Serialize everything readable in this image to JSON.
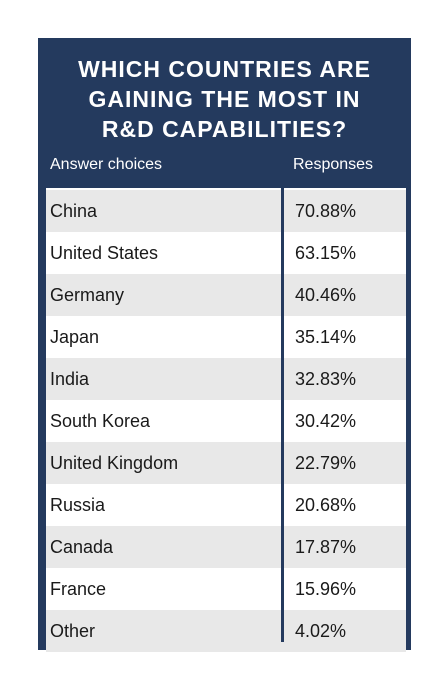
{
  "colors": {
    "header_bg": "#243a5e",
    "header_text": "#ffffff",
    "row_alt": "#e8e8e8",
    "row_plain": "#ffffff",
    "text": "#1a1a1a"
  },
  "chart_data": {
    "type": "table",
    "title": "WHICH COUNTRIES ARE GAINING THE MOST IN R&D CAPABILITIES?",
    "title_lines": [
      "WHICH COUNTRIES ARE",
      "GAINING THE MOST IN",
      "R&D CAPABILITIES?"
    ],
    "columns": [
      "Answer choices",
      "Responses"
    ],
    "rows": [
      {
        "country": "China",
        "response": "70.88%"
      },
      {
        "country": "United States",
        "response": "63.15%"
      },
      {
        "country": "Germany",
        "response": "40.46%"
      },
      {
        "country": "Japan",
        "response": "35.14%"
      },
      {
        "country": "India",
        "response": "32.83%"
      },
      {
        "country": "South Korea",
        "response": "30.42%"
      },
      {
        "country": "United Kingdom",
        "response": "22.79%"
      },
      {
        "country": "Russia",
        "response": "20.68%"
      },
      {
        "country": "Canada",
        "response": "17.87%"
      },
      {
        "country": "France",
        "response": "15.96%"
      },
      {
        "country": "Other",
        "response": "4.02%"
      }
    ]
  }
}
